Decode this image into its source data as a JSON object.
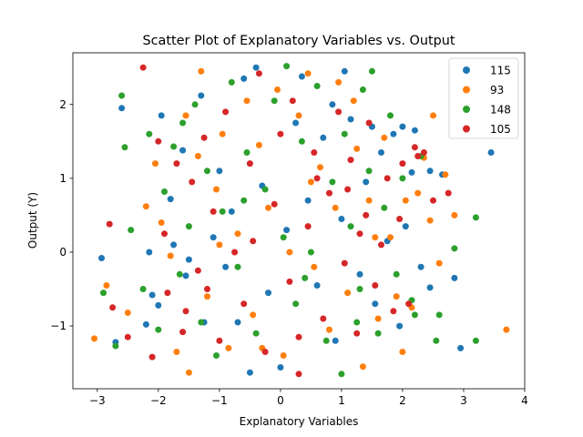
{
  "chart_data": {
    "type": "scatter",
    "title": "Scatter Plot of Explanatory Variables vs. Output",
    "xlabel": "Explanatory Variables",
    "ylabel": "Output (Y)",
    "xlim": [
      -3.4,
      4.0
    ],
    "ylim": [
      -1.85,
      2.7
    ],
    "xticks": [
      -3,
      -2,
      -1,
      0,
      1,
      2,
      3,
      4
    ],
    "yticks": [
      -1,
      0,
      1,
      2
    ],
    "xtick_labels": [
      "−3",
      "−2",
      "−1",
      "0",
      "1",
      "2",
      "3",
      "4"
    ],
    "ytick_labels": [
      "−1",
      "0",
      "1",
      "2"
    ],
    "grid": false,
    "legend_position": "top-right",
    "series": [
      {
        "name": "115",
        "color": "#1f77b4",
        "points": [
          [
            -2.93,
            -0.08
          ],
          [
            -2.7,
            -1.22
          ],
          [
            -2.6,
            1.95
          ],
          [
            -2.2,
            -0.98
          ],
          [
            -2.15,
            0.0
          ],
          [
            -2.1,
            -0.58
          ],
          [
            -2.0,
            -0.72
          ],
          [
            -1.95,
            1.85
          ],
          [
            -1.8,
            0.72
          ],
          [
            -1.75,
            0.1
          ],
          [
            -1.6,
            1.38
          ],
          [
            -1.55,
            -0.32
          ],
          [
            -1.3,
            2.12
          ],
          [
            -1.25,
            -0.95
          ],
          [
            -1.1,
            0.2
          ],
          [
            -1.0,
            1.1
          ],
          [
            -0.9,
            -0.2
          ],
          [
            -0.8,
            0.55
          ],
          [
            -0.6,
            2.35
          ],
          [
            -0.5,
            -1.63
          ],
          [
            -0.4,
            2.5
          ],
          [
            -0.3,
            0.9
          ],
          [
            -0.2,
            -0.55
          ],
          [
            0.0,
            -1.56
          ],
          [
            0.1,
            0.3
          ],
          [
            0.25,
            1.75
          ],
          [
            0.35,
            2.38
          ],
          [
            0.45,
            0.7
          ],
          [
            0.6,
            -0.45
          ],
          [
            0.7,
            1.55
          ],
          [
            0.85,
            2.0
          ],
          [
            1.0,
            0.45
          ],
          [
            1.05,
            2.45
          ],
          [
            1.15,
            1.8
          ],
          [
            1.3,
            -0.3
          ],
          [
            1.4,
            0.95
          ],
          [
            1.55,
            -0.7
          ],
          [
            1.65,
            1.35
          ],
          [
            1.75,
            0.15
          ],
          [
            1.85,
            1.6
          ],
          [
            1.95,
            -1.0
          ],
          [
            2.0,
            1.7
          ],
          [
            2.05,
            0.35
          ],
          [
            2.15,
            1.08
          ],
          [
            2.2,
            1.65
          ],
          [
            2.3,
            -0.2
          ],
          [
            2.45,
            -0.48
          ],
          [
            2.45,
            1.1
          ],
          [
            2.65,
            1.05
          ],
          [
            2.85,
            -0.35
          ],
          [
            2.95,
            -1.3
          ],
          [
            3.45,
            1.35
          ],
          [
            -1.5,
            -0.1
          ],
          [
            -0.7,
            -0.95
          ],
          [
            0.9,
            -1.2
          ],
          [
            1.5,
            1.7
          ]
        ]
      },
      {
        "name": "93",
        "color": "#ff7f0e",
        "points": [
          [
            -3.05,
            -1.17
          ],
          [
            -2.85,
            -0.45
          ],
          [
            -2.5,
            -0.82
          ],
          [
            -2.2,
            0.62
          ],
          [
            -2.05,
            1.2
          ],
          [
            -1.95,
            0.4
          ],
          [
            -1.8,
            -0.05
          ],
          [
            -1.7,
            -1.35
          ],
          [
            -1.55,
            1.85
          ],
          [
            -1.5,
            -1.63
          ],
          [
            -1.3,
            2.45
          ],
          [
            -1.35,
            1.3
          ],
          [
            -1.2,
            -0.6
          ],
          [
            -1.05,
            0.85
          ],
          [
            -0.95,
            1.6
          ],
          [
            -0.85,
            -1.3
          ],
          [
            -0.7,
            0.25
          ],
          [
            -0.55,
            2.05
          ],
          [
            -0.45,
            -0.85
          ],
          [
            -0.35,
            1.45
          ],
          [
            -0.2,
            0.6
          ],
          [
            -0.05,
            2.2
          ],
          [
            0.05,
            -1.4
          ],
          [
            0.15,
            0.0
          ],
          [
            0.3,
            1.85
          ],
          [
            0.45,
            2.42
          ],
          [
            0.55,
            -0.2
          ],
          [
            0.65,
            1.15
          ],
          [
            0.8,
            -1.05
          ],
          [
            0.9,
            0.6
          ],
          [
            0.95,
            2.3
          ],
          [
            1.1,
            -0.55
          ],
          [
            1.2,
            2.05
          ],
          [
            1.25,
            1.4
          ],
          [
            1.35,
            -1.55
          ],
          [
            1.45,
            0.7
          ],
          [
            1.6,
            -0.9
          ],
          [
            1.7,
            1.55
          ],
          [
            1.8,
            0.2
          ],
          [
            1.9,
            -0.6
          ],
          [
            2.0,
            -1.35
          ],
          [
            2.05,
            0.7
          ],
          [
            2.25,
            0.8
          ],
          [
            2.35,
            1.28
          ],
          [
            2.45,
            0.43
          ],
          [
            2.5,
            1.85
          ],
          [
            2.6,
            -0.15
          ],
          [
            2.7,
            1.05
          ],
          [
            2.85,
            0.5
          ],
          [
            3.7,
            -1.05
          ],
          [
            -1.0,
            0.1
          ],
          [
            0.5,
            0.95
          ],
          [
            1.55,
            0.2
          ],
          [
            -0.3,
            -1.3
          ],
          [
            2.15,
            -0.75
          ]
        ]
      },
      {
        "name": "148",
        "color": "#2ca02c",
        "points": [
          [
            -2.9,
            -0.55
          ],
          [
            -2.7,
            -1.27
          ],
          [
            -2.6,
            2.12
          ],
          [
            -2.55,
            1.42
          ],
          [
            -2.45,
            0.3
          ],
          [
            -2.25,
            -0.5
          ],
          [
            -2.15,
            1.6
          ],
          [
            -2.0,
            -1.05
          ],
          [
            -1.9,
            0.82
          ],
          [
            -1.75,
            1.43
          ],
          [
            -1.65,
            -0.3
          ],
          [
            -1.5,
            0.35
          ],
          [
            -1.4,
            2.0
          ],
          [
            -1.3,
            -0.95
          ],
          [
            -1.2,
            1.1
          ],
          [
            -1.05,
            -1.4
          ],
          [
            -0.95,
            0.55
          ],
          [
            -0.8,
            2.3
          ],
          [
            -0.7,
            -0.2
          ],
          [
            -0.55,
            1.35
          ],
          [
            -0.4,
            -1.1
          ],
          [
            -0.25,
            0.85
          ],
          [
            -0.1,
            2.05
          ],
          [
            0.05,
            0.2
          ],
          [
            0.1,
            2.52
          ],
          [
            0.25,
            -0.7
          ],
          [
            0.35,
            1.5
          ],
          [
            0.5,
            0.0
          ],
          [
            0.6,
            2.25
          ],
          [
            0.75,
            -1.2
          ],
          [
            0.85,
            0.95
          ],
          [
            1.0,
            -1.65
          ],
          [
            1.05,
            1.6
          ],
          [
            1.15,
            0.35
          ],
          [
            1.3,
            -0.5
          ],
          [
            1.35,
            2.2
          ],
          [
            1.45,
            1.1
          ],
          [
            1.5,
            2.45
          ],
          [
            1.6,
            -1.1
          ],
          [
            1.7,
            0.6
          ],
          [
            1.8,
            1.85
          ],
          [
            1.9,
            -0.3
          ],
          [
            2.0,
            1.0
          ],
          [
            2.15,
            -0.65
          ],
          [
            2.2,
            -0.85
          ],
          [
            2.3,
            1.3
          ],
          [
            2.55,
            -1.2
          ],
          [
            2.6,
            -0.85
          ],
          [
            2.85,
            0.05
          ],
          [
            3.2,
            0.47
          ],
          [
            3.2,
            -1.2
          ],
          [
            -0.6,
            0.7
          ],
          [
            0.4,
            -0.35
          ],
          [
            1.25,
            -0.95
          ],
          [
            -1.6,
            1.75
          ]
        ]
      },
      {
        "name": "105",
        "color": "#d62728",
        "points": [
          [
            -2.8,
            0.38
          ],
          [
            -2.75,
            -0.75
          ],
          [
            -2.5,
            -1.15
          ],
          [
            -2.25,
            2.5
          ],
          [
            -2.1,
            -1.42
          ],
          [
            -2.0,
            1.5
          ],
          [
            -1.9,
            0.25
          ],
          [
            -1.85,
            -0.55
          ],
          [
            -1.7,
            1.2
          ],
          [
            -1.6,
            -1.08
          ],
          [
            -1.45,
            0.95
          ],
          [
            -1.35,
            -0.25
          ],
          [
            -1.25,
            1.55
          ],
          [
            -1.1,
            0.55
          ],
          [
            -1.0,
            -1.2
          ],
          [
            -0.9,
            1.9
          ],
          [
            -0.75,
            0.0
          ],
          [
            -0.6,
            -0.7
          ],
          [
            -0.5,
            1.2
          ],
          [
            -0.35,
            2.42
          ],
          [
            -0.25,
            -1.35
          ],
          [
            -0.1,
            0.65
          ],
          [
            0.0,
            1.6
          ],
          [
            0.15,
            -0.4
          ],
          [
            0.2,
            2.05
          ],
          [
            0.3,
            -1.15
          ],
          [
            0.45,
            0.35
          ],
          [
            0.55,
            1.35
          ],
          [
            0.7,
            -0.9
          ],
          [
            0.8,
            0.8
          ],
          [
            0.95,
            1.9
          ],
          [
            1.05,
            -0.15
          ],
          [
            1.15,
            1.25
          ],
          [
            1.25,
            -1.1
          ],
          [
            1.4,
            0.5
          ],
          [
            1.45,
            1.75
          ],
          [
            1.55,
            -0.45
          ],
          [
            1.65,
            0.1
          ],
          [
            1.75,
            1.0
          ],
          [
            1.85,
            -0.8
          ],
          [
            1.95,
            0.45
          ],
          [
            2.0,
            1.2
          ],
          [
            2.1,
            -0.7
          ],
          [
            2.2,
            1.42
          ],
          [
            2.35,
            1.35
          ],
          [
            2.5,
            0.7
          ],
          [
            2.75,
            0.8
          ],
          [
            0.3,
            -1.65
          ],
          [
            -1.55,
            -0.8
          ],
          [
            0.6,
            1.0
          ],
          [
            1.3,
            0.25
          ],
          [
            -0.45,
            0.15
          ],
          [
            1.1,
            0.85
          ],
          [
            -1.2,
            -0.5
          ],
          [
            2.25,
            1.3
          ]
        ]
      }
    ]
  }
}
